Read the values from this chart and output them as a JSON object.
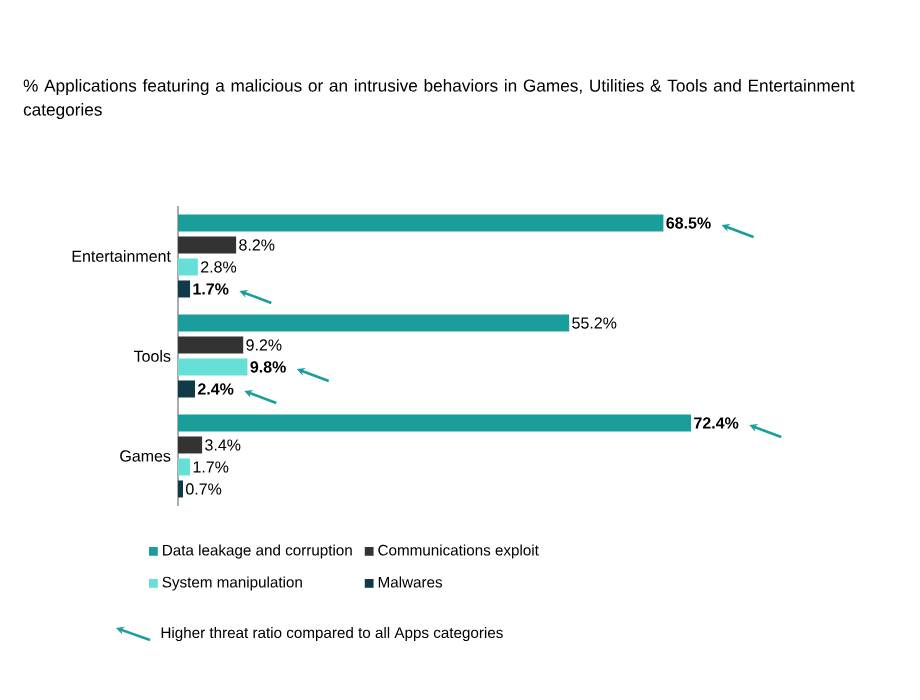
{
  "chart_data": {
    "type": "bar",
    "orientation": "horizontal",
    "title": "% Applications featuring a malicious or an intrusive behaviors in Games, Utilities & Tools and Entertainment categories",
    "categories": [
      "Entertainment",
      "Tools",
      "Games"
    ],
    "series": [
      {
        "name": "Data leakage and corruption",
        "color": "#1a9e9b",
        "values": [
          68.5,
          55.2,
          72.4
        ],
        "value_labels": [
          "**68.5%**",
          "55.2%",
          "**72.4%**"
        ]
      },
      {
        "name": "Communications exploit",
        "color": "#333333",
        "values": [
          8.2,
          9.2,
          3.4
        ],
        "value_labels": [
          "8.2%",
          "9.2%",
          "3.4%"
        ]
      },
      {
        "name": "System manipulation",
        "color": "#66e0d6",
        "values": [
          2.8,
          9.8,
          1.7
        ],
        "value_labels": [
          "2.8%",
          "**9.8%**",
          "1.7%"
        ]
      },
      {
        "name": "Malwares",
        "color": "#0f3a4a",
        "values": [
          1.7,
          2.4,
          0.7
        ],
        "value_labels": [
          "**1.7%**",
          "**2.4%**",
          "0.7%"
        ]
      }
    ],
    "legend": "bottom",
    "tick_labels": "y",
    "annotations": [
      "Higher threat ratio compared to all Apps categories"
    ]
  }
}
